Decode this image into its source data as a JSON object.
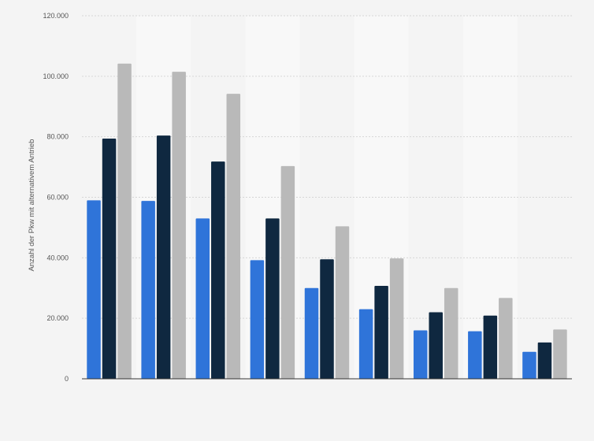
{
  "chart_data": {
    "type": "bar",
    "title": "",
    "xlabel": "",
    "ylabel": "Anzahl der Pkw mit alternativem Antrieb",
    "ylim": [
      0,
      120000
    ],
    "y_ticks": [
      "0",
      "20.000",
      "40.000",
      "60.000",
      "80.000",
      "100.000",
      "120.000"
    ],
    "y_tick_values": [
      0,
      20000,
      40000,
      60000,
      80000,
      100000,
      120000
    ],
    "grid": true,
    "legend": "none",
    "categories": [
      "",
      "",
      "",
      "",
      "",
      "",
      "",
      "",
      ""
    ],
    "series": [
      {
        "color": "#2f74d9",
        "values": [
          59000,
          58800,
          53000,
          39200,
          30000,
          23000,
          16000,
          15700,
          8900
        ]
      },
      {
        "color": "#0f2840",
        "values": [
          79400,
          80400,
          71800,
          53000,
          39500,
          30700,
          22000,
          20900,
          12000
        ]
      },
      {
        "color": "#b9b9b9",
        "values": [
          104200,
          101500,
          94200,
          70300,
          50400,
          39800,
          30000,
          26700,
          16300
        ]
      }
    ]
  }
}
